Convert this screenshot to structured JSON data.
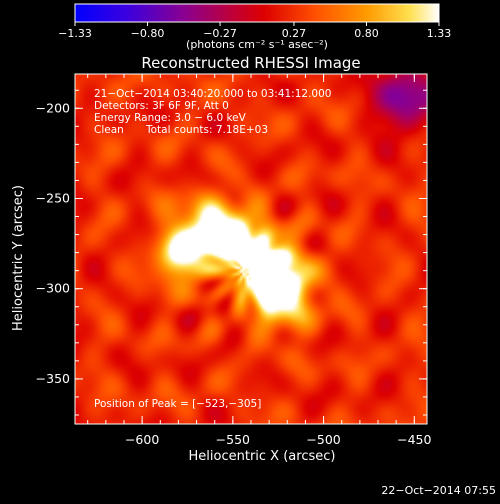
{
  "chart_data": {
    "type": "heatmap",
    "title": "Reconstructed RHESSI Image",
    "xlabel": "Heliocentric X (arcsec)",
    "ylabel": "Heliocentric Y (arcsec)",
    "xlim": [
      -637,
      -443
    ],
    "ylim": [
      -375,
      -181
    ],
    "x_ticks": [
      -600,
      -550,
      -500,
      -450
    ],
    "y_ticks": [
      -200,
      -250,
      -300,
      -350
    ],
    "x_tick_labels": [
      "−600",
      "−550",
      "−500",
      "−450"
    ],
    "y_tick_labels": [
      "−200",
      "−250",
      "−300",
      "−350"
    ],
    "colorbar": {
      "range": [
        -1.33,
        1.33
      ],
      "ticks": [
        -1.33,
        -0.8,
        -0.27,
        0.27,
        0.8,
        1.33
      ],
      "tick_labels": [
        "−1.33",
        "−0.80",
        "−0.27",
        "0.27",
        "0.80",
        "1.33"
      ],
      "units_label": "(photons cm⁻² s⁻¹ asec⁻²)",
      "colors": [
        "#0000ff",
        "#5a00c8",
        "#8e008e",
        "#cc0000",
        "#ff4400",
        "#ff9900",
        "#ffdd44",
        "#ffffff"
      ]
    },
    "annotations": {
      "time_range": "21−Oct−2014 03:40:20.000 to 03:41:12.000",
      "detectors": "Detectors: 3F 6F 9F, Att 0",
      "energy": "Energy Range: 3.0 − 6.0 keV",
      "method": "Clean",
      "counts": "Total counts: 7.18E+03",
      "peak": "Position of Peak = [−523,−305]"
    },
    "peak_position": [
      -523,
      -305
    ],
    "footer_timestamp": "22−Oct−2014 07:55",
    "image_sources": [
      {
        "x": -523,
        "y": -300,
        "amplitude": 1.33,
        "sigma_x": 12,
        "sigma_y": 14
      },
      {
        "x": -532,
        "y": -288,
        "amplitude": 1.05,
        "sigma_x": 10,
        "sigma_y": 12
      },
      {
        "x": -546,
        "y": -276,
        "amplitude": 0.95,
        "sigma_x": 10,
        "sigma_y": 10
      },
      {
        "x": -568,
        "y": -275,
        "amplitude": 1.0,
        "sigma_x": 12,
        "sigma_y": 10
      },
      {
        "x": -580,
        "y": -285,
        "amplitude": 0.8,
        "sigma_x": 8,
        "sigma_y": 10
      },
      {
        "x": -560,
        "y": -262,
        "amplitude": 0.75,
        "sigma_x": 14,
        "sigma_y": 10
      }
    ],
    "background_level": 0.25,
    "dark_region": {
      "x": -455,
      "y": -195,
      "amplitude": -0.9,
      "sigma_x": 12,
      "sigma_y": 12
    }
  }
}
